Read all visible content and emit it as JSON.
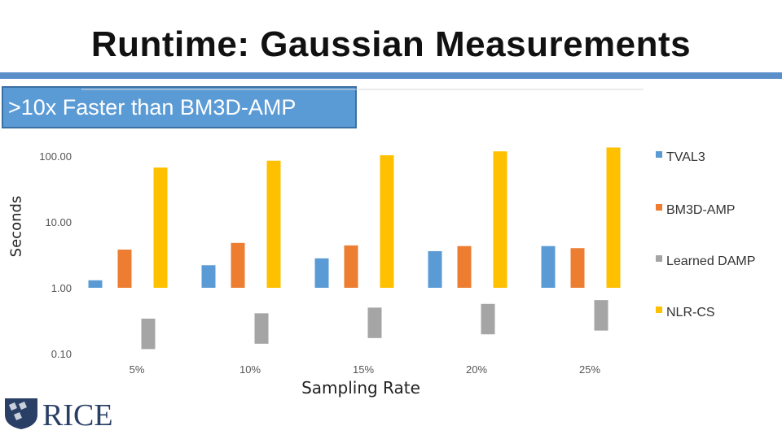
{
  "slide": {
    "title": "Runtime: Gaussian Measurements",
    "callout": ">10x Faster than BM3D-AMP",
    "logo_text": "RICE"
  },
  "chart_data": {
    "type": "bar",
    "ylabel": "Seconds",
    "xlabel": "Sampling Rate",
    "yscale": "log",
    "ylim": [
      0.1,
      100
    ],
    "yticks": [
      "0.10",
      "1.00",
      "10.00",
      "100.00"
    ],
    "categories": [
      "5%",
      "10%",
      "15%",
      "20%",
      "25%"
    ],
    "grid": false,
    "legend_position": "right",
    "series": [
      {
        "name": "TVAL3",
        "color": "#5b9bd5",
        "values": [
          1.3,
          2.2,
          2.8,
          3.6,
          4.3
        ]
      },
      {
        "name": "BM3D-AMP",
        "color": "#ed7d31",
        "values": [
          3.8,
          4.8,
          4.4,
          4.3,
          4.0
        ]
      },
      {
        "name": "Learned DAMP",
        "color": "#a5a5a5",
        "values": [
          0.34,
          0.41,
          0.5,
          0.57,
          0.65
        ]
      },
      {
        "name": "NLR-CS",
        "color": "#ffc000",
        "values": [
          67,
          85,
          103,
          118,
          135
        ]
      }
    ]
  }
}
